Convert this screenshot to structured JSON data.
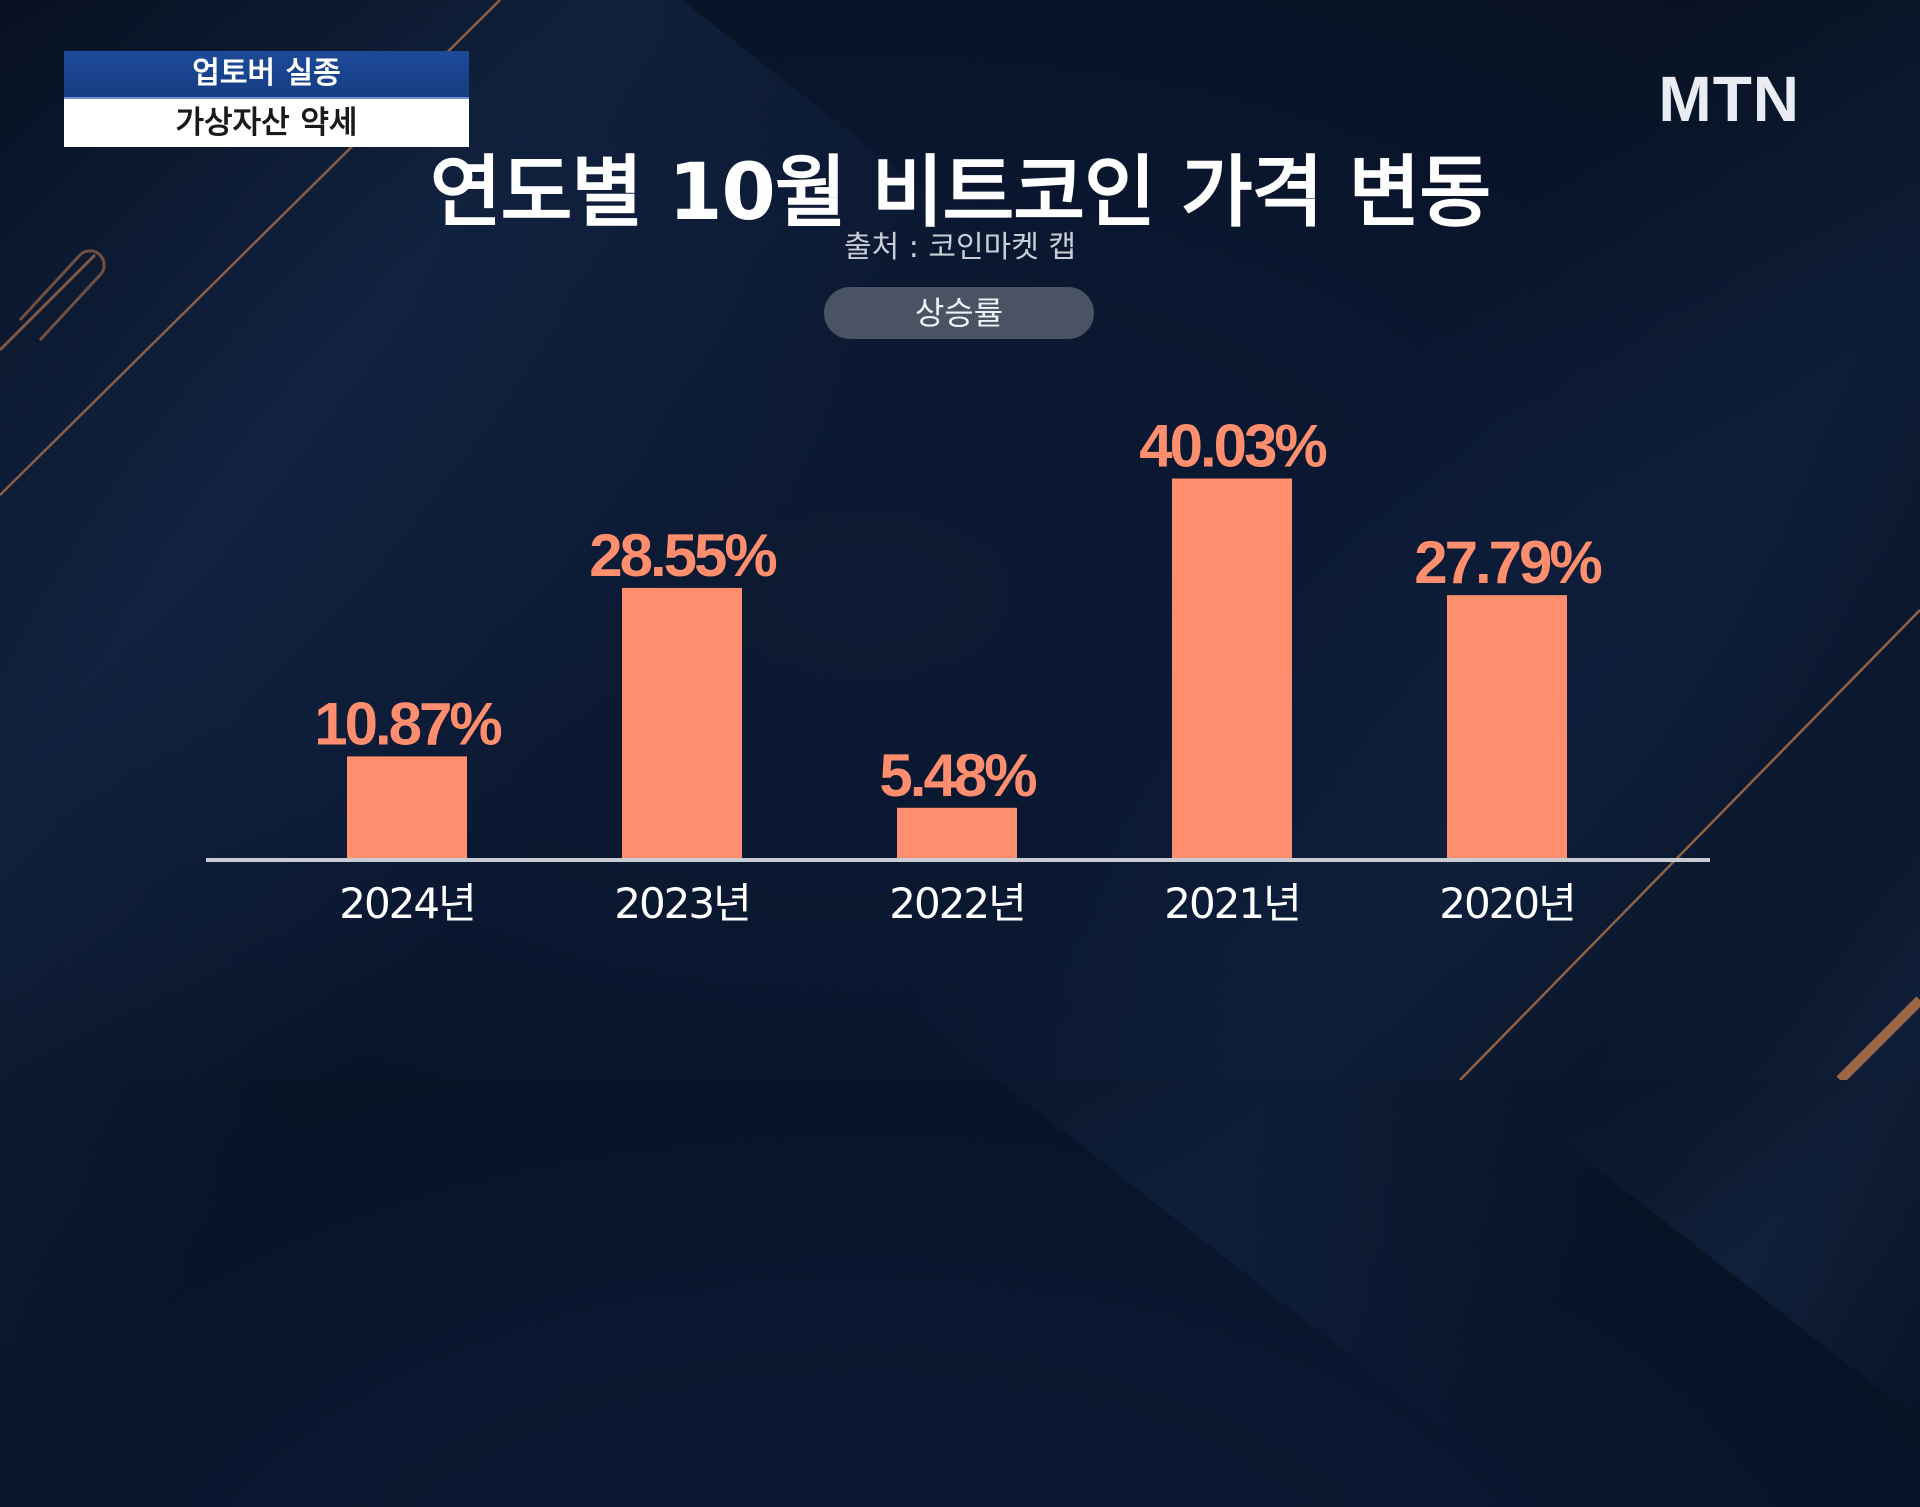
{
  "caption": {
    "line1": "업토버 실종",
    "line2": "가상자산 약세"
  },
  "logo": "MTN",
  "title": "연도별 10월 비트코인 가격 변동",
  "source": "출처 : 코인마켓 캡",
  "metric_pill": "상승률",
  "colors": {
    "bar": "#ff8e6e",
    "axis": "#c8ccd2"
  },
  "chart_data": {
    "type": "bar",
    "title": "연도별 10월 비트코인 가격 변동",
    "subtitle": "출처 : 코인마켓 캡",
    "series_name": "상승률",
    "categories": [
      "2024년",
      "2023년",
      "2022년",
      "2021년",
      "2020년"
    ],
    "values": [
      10.87,
      28.55,
      5.48,
      40.03,
      27.79
    ],
    "value_labels": [
      "10.87%",
      "28.55%",
      "5.48%",
      "40.03%",
      "27.79%"
    ],
    "unit": "%",
    "ylim": [
      0,
      45
    ],
    "grid": false,
    "legend": "none"
  }
}
